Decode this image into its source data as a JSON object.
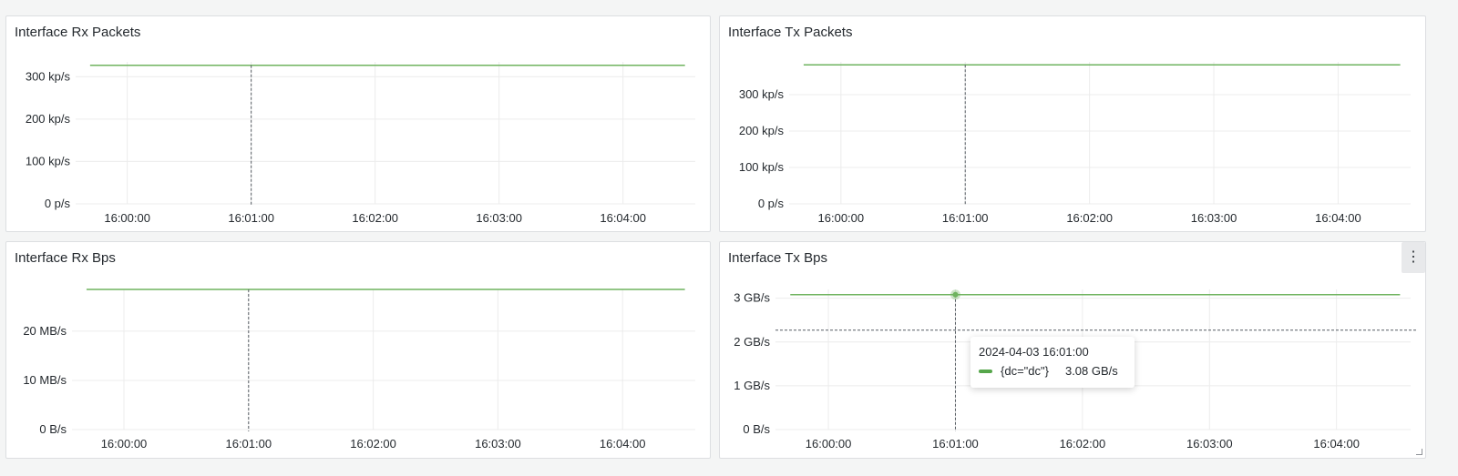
{
  "colors": {
    "series": "#6fb35f",
    "grid": "#ececec",
    "crosshair": "#555b62",
    "tooltip_swatch": "#56a64b"
  },
  "panels": [
    {
      "title": "Interface Rx Packets",
      "chart_data": {
        "type": "line",
        "x_ticks": [
          "16:00:00",
          "16:01:00",
          "16:02:00",
          "16:03:00",
          "16:04:00"
        ],
        "y_ticks": [
          "0 p/s",
          "100 kp/s",
          "200 kp/s",
          "300 kp/s"
        ],
        "y_tick_values": [
          0,
          100000,
          200000,
          300000
        ],
        "ylim": [
          0,
          335000
        ],
        "xlim": [
          "15:59:35",
          "16:04:35"
        ],
        "series": [
          {
            "x": [
              "15:59:42",
              "16:04:30"
            ],
            "values": [
              327000,
              327000
            ]
          }
        ],
        "cursor_x": "16:01:00",
        "grid": true
      }
    },
    {
      "title": "Interface Tx Packets",
      "chart_data": {
        "type": "line",
        "x_ticks": [
          "16:00:00",
          "16:01:00",
          "16:02:00",
          "16:03:00",
          "16:04:00"
        ],
        "y_ticks": [
          "0 p/s",
          "100 kp/s",
          "200 kp/s",
          "300 kp/s"
        ],
        "y_tick_values": [
          0,
          100000,
          200000,
          300000
        ],
        "ylim": [
          0,
          390000
        ],
        "xlim": [
          "15:59:35",
          "16:04:35"
        ],
        "series": [
          {
            "x": [
              "15:59:42",
              "16:04:30"
            ],
            "values": [
              382000,
              382000
            ]
          }
        ],
        "cursor_x": "16:01:00",
        "grid": true
      }
    },
    {
      "title": "Interface Rx Bps",
      "chart_data": {
        "type": "line",
        "x_ticks": [
          "16:00:00",
          "16:01:00",
          "16:02:00",
          "16:03:00",
          "16:04:00"
        ],
        "y_ticks": [
          "0 B/s",
          "10 MB/s",
          "20 MB/s"
        ],
        "y_tick_values": [
          0,
          10,
          20
        ],
        "ylim": [
          0,
          28.5
        ],
        "xlim": [
          "15:59:35",
          "16:04:35"
        ],
        "series": [
          {
            "x": [
              "15:59:42",
              "16:04:30"
            ],
            "values": [
              28.5,
              28.5
            ]
          }
        ],
        "cursor_x": "16:01:00",
        "grid": true
      }
    },
    {
      "title": "Interface Tx Bps",
      "chart_data": {
        "type": "line",
        "x_ticks": [
          "16:00:00",
          "16:01:00",
          "16:02:00",
          "16:03:00",
          "16:04:00"
        ],
        "y_ticks": [
          "0 B/s",
          "1 GB/s",
          "2 GB/s",
          "3 GB/s"
        ],
        "y_tick_values": [
          0,
          1,
          2,
          3
        ],
        "ylim": [
          0,
          3.2
        ],
        "xlim": [
          "15:59:35",
          "16:04:35"
        ],
        "series": [
          {
            "name": "{dc=\"dc\"}",
            "x": [
              "15:59:42",
              "16:04:30"
            ],
            "values": [
              3.08,
              3.08
            ]
          }
        ],
        "cursor_x": "16:01:00",
        "cursor_y": 2.27,
        "highlight_point": {
          "x": "16:01:00",
          "value": 3.08
        },
        "grid": true
      },
      "tooltip": {
        "time": "2024-04-03 16:01:00",
        "series_label": "{dc=\"dc\"}",
        "value": "3.08 GB/s"
      },
      "menu_icon": "kebab-menu-icon"
    }
  ]
}
